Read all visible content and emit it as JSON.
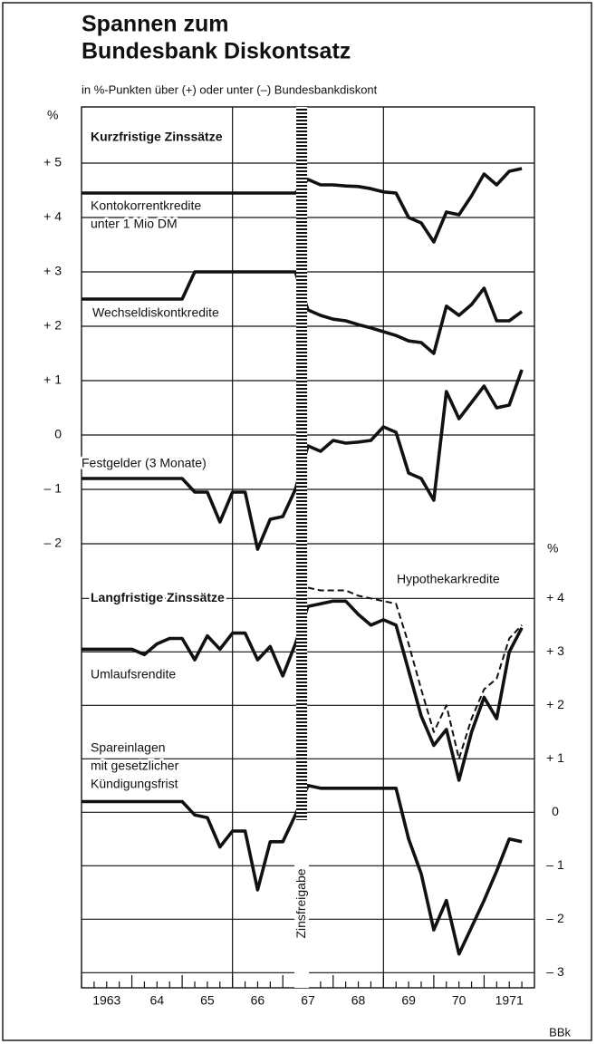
{
  "chart_data": {
    "type": "line",
    "title": [
      "Spannen zum",
      "Bundesbank Diskontsatz"
    ],
    "subtitle": "in %-Punkten über (+) oder unter (–) Bundesbankdiskont",
    "y_unit": "%",
    "y2_unit": "%",
    "panel_titles": [
      "Kurzfristige Zinssätze",
      "Langfristige Zinssätze"
    ],
    "annotation": "Zinsfreigabe",
    "source": "BBk",
    "x": [
      1963,
      1963.25,
      1963.5,
      1963.75,
      1964,
      1964.25,
      1964.5,
      1964.75,
      1965,
      1965.25,
      1965.5,
      1965.75,
      1966,
      1966.25,
      1966.5,
      1966.75,
      1967,
      1967.25,
      1967.5,
      1967.75,
      1968,
      1968.25,
      1968.5,
      1968.75,
      1969,
      1969.25,
      1969.5,
      1969.75,
      1970,
      1970.25,
      1970.5,
      1970.75,
      1971,
      1971.25,
      1971.5,
      1971.75
    ],
    "xlim": [
      1963,
      1972
    ],
    "xticks": [
      1963,
      {
        "value": 1964,
        "label": "64"
      },
      {
        "value": 1965,
        "label": "65"
      },
      {
        "value": 1966,
        "label": "66"
      },
      {
        "value": 1967,
        "label": "67"
      },
      {
        "value": 1968,
        "label": "68"
      },
      {
        "value": 1969,
        "label": "69"
      },
      {
        "value": 1970,
        "label": "70"
      },
      1971
    ],
    "x_grid_lines": [
      1966,
      1969
    ],
    "ylim": [
      -2.3,
      6
    ],
    "yticks": [
      {
        "value": 5,
        "label": "+ 5"
      },
      {
        "value": 4,
        "label": "+ 4"
      },
      {
        "value": 3,
        "label": "+ 3"
      },
      {
        "value": 2,
        "label": "+ 2"
      },
      {
        "value": 1,
        "label": "+ 1"
      },
      0,
      {
        "value": -1,
        "label": "– 1"
      },
      {
        "value": -2,
        "label": "– 2"
      }
    ],
    "y2lim": [
      -3.3,
      4.7
    ],
    "y2ticks": [
      {
        "value": 4,
        "label": "+ 4"
      },
      {
        "value": 3,
        "label": "+ 3"
      },
      {
        "value": 2,
        "label": "+ 2"
      },
      {
        "value": 1,
        "label": "+ 1"
      },
      0,
      {
        "value": -1,
        "label": "– 1"
      },
      {
        "value": -2,
        "label": "– 2"
      },
      {
        "value": -3,
        "label": "– 3"
      }
    ],
    "grid": true,
    "series": [
      {
        "name": [
          "Kontokorrentkredite",
          "unter 1 Mio DM"
        ],
        "color": "#111",
        "axis": "y",
        "values": [
          4.45,
          4.45,
          4.45,
          4.45,
          4.45,
          4.45,
          4.45,
          4.45,
          4.45,
          4.45,
          4.45,
          4.45,
          4.45,
          4.45,
          4.45,
          4.45,
          4.45,
          4.45,
          4.7,
          4.6,
          4.6,
          4.58,
          4.57,
          4.53,
          4.47,
          4.45,
          4.0,
          3.9,
          3.55,
          4.1,
          4.05,
          4.4,
          4.8,
          4.6,
          4.85,
          4.9
        ]
      },
      {
        "name": [
          "Wechseldiskontkredite"
        ],
        "color": "#111",
        "axis": "y",
        "values": [
          2.5,
          2.5,
          2.5,
          2.5,
          2.5,
          2.5,
          2.5,
          2.5,
          2.5,
          3.0,
          3.0,
          3.0,
          3.0,
          3.0,
          3.0,
          3.0,
          3.0,
          3.0,
          2.3,
          2.2,
          2.13,
          2.1,
          2.03,
          1.97,
          1.9,
          1.83,
          1.73,
          1.7,
          1.5,
          2.37,
          2.2,
          2.4,
          2.7,
          2.1,
          2.1,
          2.27
        ]
      },
      {
        "name": [
          "Festgelder (3 Monate)"
        ],
        "color": "#111",
        "axis": "y",
        "values": [
          -0.8,
          -0.8,
          -0.8,
          -0.8,
          -0.8,
          -0.8,
          -0.8,
          -0.8,
          -0.8,
          -1.05,
          -1.05,
          -1.6,
          -1.05,
          -1.05,
          -2.1,
          -1.55,
          -1.5,
          -1.0,
          -0.2,
          -0.3,
          -0.1,
          -0.15,
          -0.13,
          -0.1,
          0.15,
          0.05,
          -0.7,
          -0.8,
          -1.2,
          0.8,
          0.3,
          0.6,
          0.9,
          0.5,
          0.55,
          1.2
        ]
      },
      {
        "name": [
          "Hypothekarkredite"
        ],
        "color": "#111",
        "axis": "y2",
        "dashed": true,
        "values": [
          null,
          null,
          null,
          null,
          null,
          null,
          null,
          null,
          null,
          null,
          null,
          null,
          null,
          null,
          null,
          null,
          null,
          null,
          4.2,
          4.15,
          4.15,
          4.15,
          4.05,
          4.0,
          3.95,
          3.9,
          3.15,
          2.3,
          1.5,
          2.0,
          1.0,
          1.75,
          2.3,
          2.5,
          3.25,
          3.5
        ]
      },
      {
        "name": [
          "Umlaufsrendite"
        ],
        "color": "#111",
        "axis": "y2",
        "values": [
          3.05,
          3.05,
          3.05,
          3.05,
          3.05,
          2.95,
          3.15,
          3.25,
          3.25,
          2.85,
          3.3,
          3.05,
          3.35,
          3.35,
          2.85,
          3.1,
          2.55,
          3.15,
          3.85,
          3.9,
          3.95,
          3.95,
          3.7,
          3.5,
          3.6,
          3.5,
          2.65,
          1.8,
          1.25,
          1.55,
          0.6,
          1.5,
          2.15,
          1.75,
          3.0,
          3.45
        ]
      },
      {
        "name": [
          "Spareinlagen",
          "mit gesetzlicher",
          "Kündigungsfrist"
        ],
        "color": "#111",
        "axis": "y2",
        "values": [
          0.2,
          0.2,
          0.2,
          0.2,
          0.2,
          0.2,
          0.2,
          0.2,
          0.2,
          -0.05,
          -0.1,
          -0.65,
          -0.35,
          -0.35,
          -1.45,
          -0.55,
          -0.55,
          -0.05,
          0.5,
          0.45,
          0.45,
          0.45,
          0.45,
          0.45,
          0.45,
          0.45,
          -0.5,
          -1.15,
          -2.2,
          -1.65,
          -2.65,
          -2.15,
          -1.65,
          -1.1,
          -0.5,
          -0.55
        ]
      }
    ]
  }
}
